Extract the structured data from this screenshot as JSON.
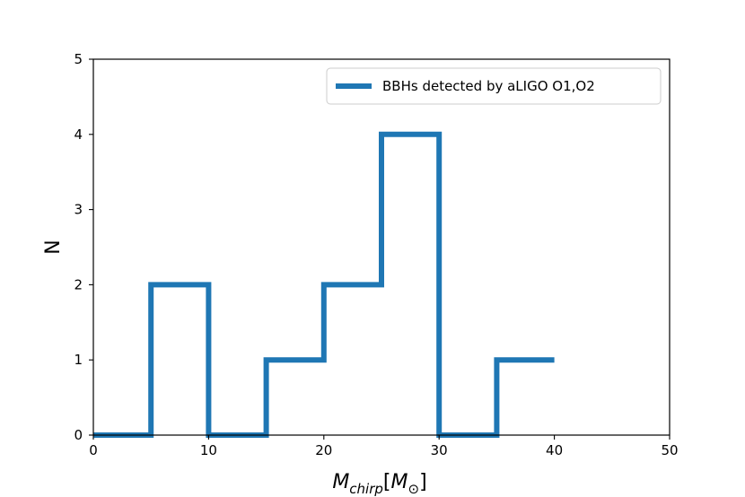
{
  "chart_data": {
    "type": "step",
    "title": "",
    "xlabel": {
      "base": "M",
      "sub": "chirp",
      "bracket_base": "M",
      "bracket_sub": "⊙"
    },
    "ylabel": "N",
    "xlim": [
      0,
      50
    ],
    "ylim": [
      0,
      5
    ],
    "xticks": [
      0,
      10,
      20,
      30,
      40,
      50
    ],
    "yticks": [
      0,
      1,
      2,
      3,
      4,
      5
    ],
    "grid": false,
    "legend": {
      "placement": "top-right",
      "entries": [
        "BBHs detected by aLIGO O1,O2"
      ]
    },
    "series": [
      {
        "name": "BBHs detected by aLIGO O1,O2",
        "color": "#1f77b4",
        "bin_edges": [
          0,
          5,
          10,
          15,
          20,
          25,
          30,
          35,
          40
        ],
        "counts": [
          0,
          2,
          0,
          1,
          2,
          4,
          0,
          1
        ]
      }
    ]
  }
}
